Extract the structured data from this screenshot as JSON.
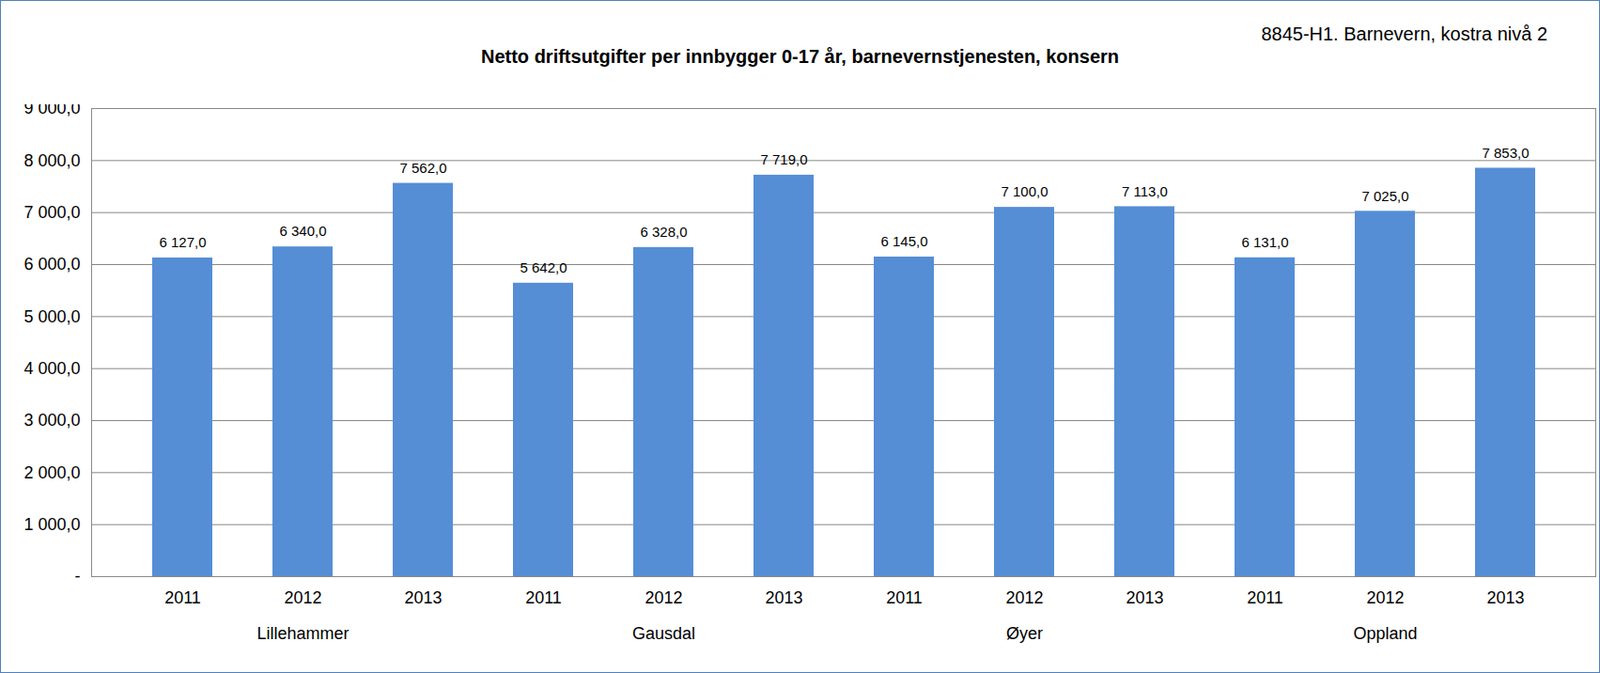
{
  "chart_data": {
    "type": "bar",
    "title": "Netto driftsutgifter per innbygger 0-17 år, barnevernstjenesten, konsern",
    "subtitle": "8845-H1. Barnevern, kostra nivå 2",
    "categories": [
      "2011",
      "2012",
      "2013",
      "2011",
      "2012",
      "2013",
      "2011",
      "2012",
      "2013",
      "2011",
      "2012",
      "2013"
    ],
    "groups": [
      "Lillehammer",
      "Gausdal",
      "Øyer",
      "Oppland"
    ],
    "values": [
      6127,
      6340,
      7562,
      5642,
      6328,
      7719,
      6145,
      7100,
      7113,
      6131,
      7025,
      7853
    ],
    "value_labels": [
      "6 127,0",
      "6 340,0",
      "7 562,0",
      "5 642,0",
      "6 328,0",
      "7 719,0",
      "6 145,0",
      "7 100,0",
      "7 113,0",
      "6 131,0",
      "7 025,0",
      "7 853,0"
    ],
    "color": "#558ed5",
    "ylim": [
      0,
      9000
    ],
    "yticks": [
      {
        "value": 0,
        "label": "-"
      },
      {
        "value": 1000,
        "label": "1 000,0"
      },
      {
        "value": 2000,
        "label": "2 000,0"
      },
      {
        "value": 3000,
        "label": "3 000,0"
      },
      {
        "value": 4000,
        "label": "4 000,0"
      },
      {
        "value": 5000,
        "label": "5 000,0"
      },
      {
        "value": 6000,
        "label": "6 000,0"
      },
      {
        "value": 7000,
        "label": "7 000,0"
      },
      {
        "value": 8000,
        "label": "8 000,0"
      },
      {
        "value": 9000,
        "label": "9 000,0"
      }
    ],
    "grid": true,
    "data_labels": true
  }
}
